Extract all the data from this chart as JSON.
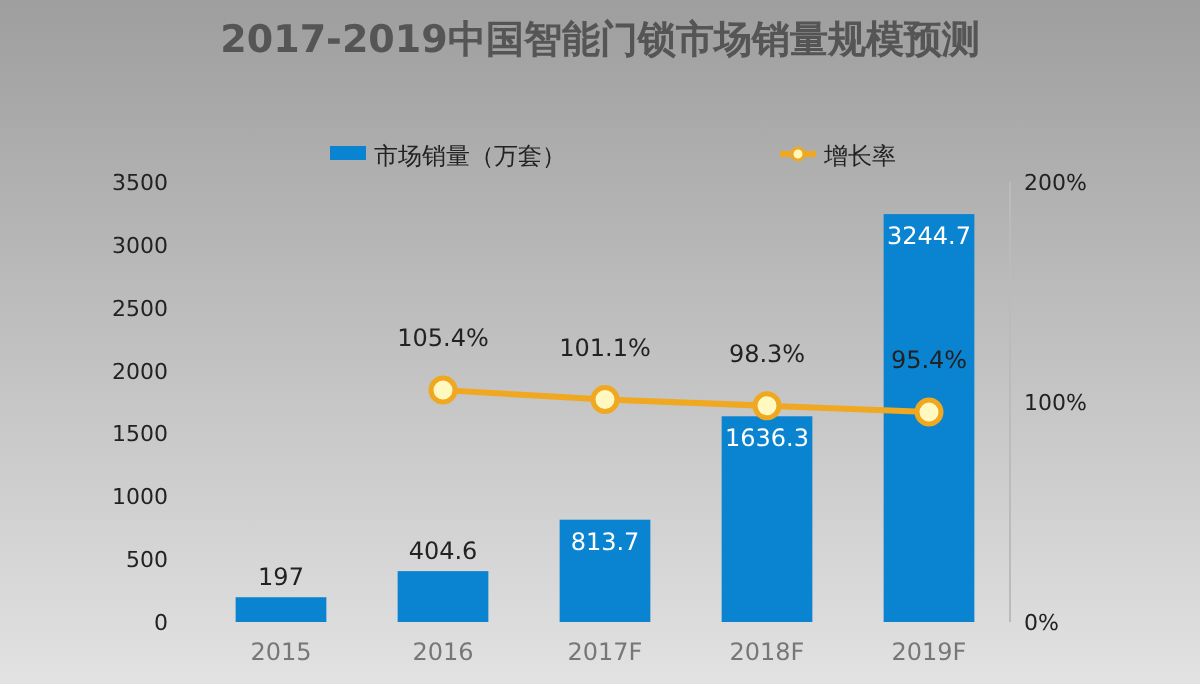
{
  "chart_data": {
    "type": "bar",
    "title": "2017-2019中国智能门锁市场销量规模预测",
    "categories": [
      "2015",
      "2016",
      "2017F",
      "2018F",
      "2019F"
    ],
    "series": [
      {
        "name": "市场销量（万套）",
        "color": "#0a84d0",
        "values": [
          197,
          404.6,
          813.7,
          1636.3,
          3244.7
        ],
        "value_labels": [
          "197",
          "404.6",
          "813.7",
          "1636.3",
          "3244.7"
        ]
      },
      {
        "name": "增长率",
        "type": "line",
        "axis": "y2",
        "color": "#f0a820",
        "marker": "circle",
        "values": [
          null,
          105.4,
          101.1,
          98.3,
          95.4
        ],
        "value_labels": [
          null,
          "105.4%",
          "101.1%",
          "98.3%",
          "95.4%"
        ]
      }
    ],
    "ylim": [
      0,
      3500
    ],
    "yticks": [
      0,
      500,
      1000,
      1500,
      2000,
      2500,
      3000,
      3500
    ],
    "y2lim": [
      0,
      200
    ],
    "y2ticks": [
      {
        "value": 0,
        "label": "0%"
      },
      {
        "value": 100,
        "label": "100%"
      },
      {
        "value": 200,
        "label": "200%"
      }
    ],
    "legend": "top"
  }
}
